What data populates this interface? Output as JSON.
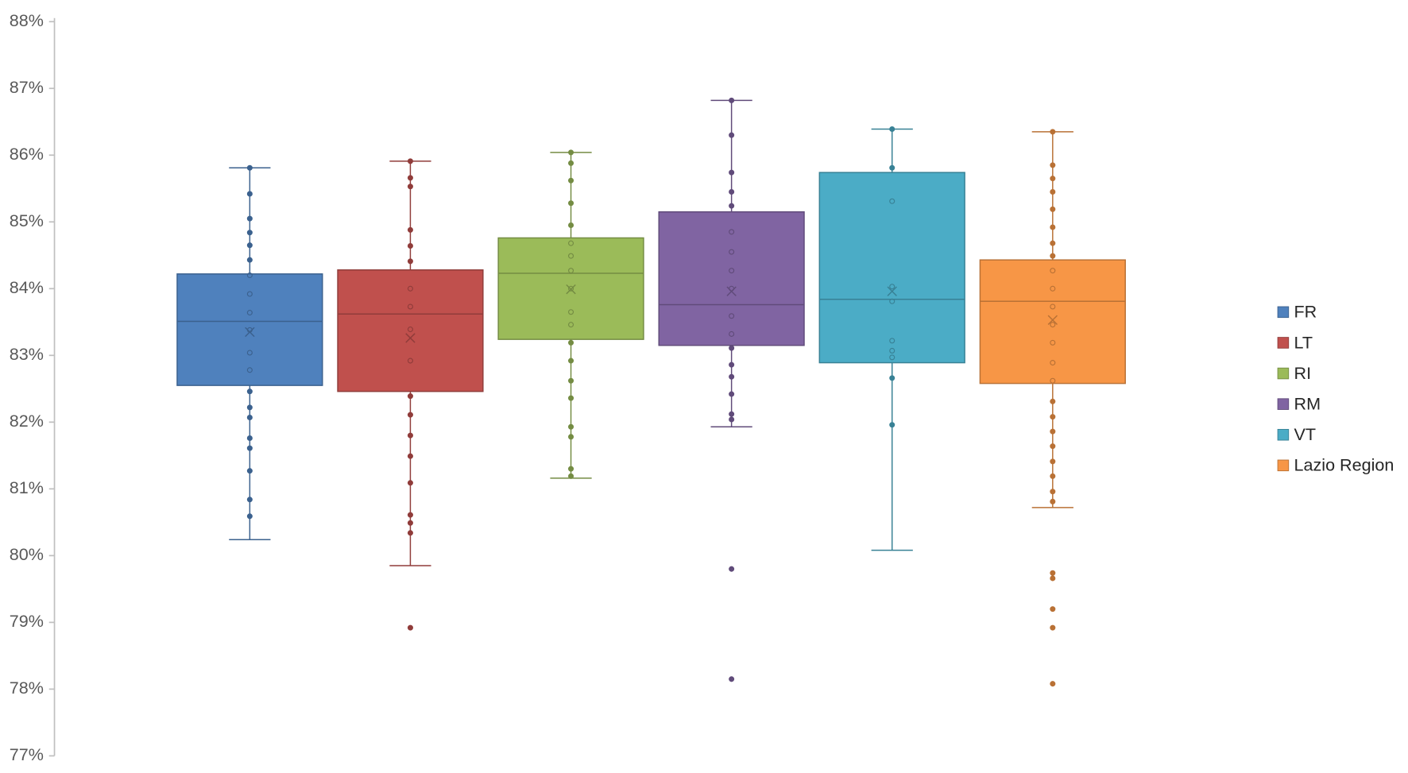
{
  "chart_data": {
    "type": "box",
    "ylim": [
      77,
      88
    ],
    "yticks": [
      {
        "value": 77,
        "label": "77%"
      },
      {
        "value": 78,
        "label": "78%"
      },
      {
        "value": 79,
        "label": "79%"
      },
      {
        "value": 80,
        "label": "80%"
      },
      {
        "value": 81,
        "label": "81%"
      },
      {
        "value": 82,
        "label": "82%"
      },
      {
        "value": 83,
        "label": "83%"
      },
      {
        "value": 84,
        "label": "84%"
      },
      {
        "value": 85,
        "label": "85%"
      },
      {
        "value": 86,
        "label": "86%"
      },
      {
        "value": 87,
        "label": "87%"
      },
      {
        "value": 88,
        "label": "88%"
      }
    ],
    "legend": "right",
    "series": [
      {
        "name": "FR",
        "color": "#4f81bd",
        "whisker_low": 80.24,
        "q1": 82.55,
        "median": 83.51,
        "q3": 84.22,
        "whisker_high": 85.81,
        "mean": 83.35,
        "points": [
          85.81,
          85.42,
          85.05,
          84.84,
          84.65,
          84.43,
          84.2,
          83.92,
          83.64,
          83.38,
          83.04,
          82.78,
          82.46,
          82.22,
          82.07,
          81.76,
          81.61,
          81.27,
          80.84,
          80.59
        ]
      },
      {
        "name": "LT",
        "color": "#c0504d",
        "whisker_low": 79.85,
        "q1": 82.46,
        "median": 83.62,
        "q3": 84.28,
        "whisker_high": 85.91,
        "mean": 83.26,
        "points": [
          85.91,
          85.66,
          85.53,
          84.88,
          84.64,
          84.41,
          84.0,
          83.73,
          83.39,
          82.92,
          82.39,
          82.11,
          81.8,
          81.49,
          81.09,
          80.61,
          80.49,
          80.34,
          78.92
        ]
      },
      {
        "name": "RI",
        "color": "#9bbb59",
        "whisker_low": 81.16,
        "q1": 83.24,
        "median": 84.23,
        "q3": 84.76,
        "whisker_high": 86.04,
        "mean": 83.99,
        "points": [
          86.04,
          85.88,
          85.62,
          85.28,
          84.95,
          84.68,
          84.49,
          84.27,
          84.0,
          83.65,
          83.46,
          83.19,
          82.92,
          82.62,
          82.36,
          81.93,
          81.78,
          81.3,
          81.19
        ]
      },
      {
        "name": "RM",
        "color": "#8064a2",
        "whisker_low": 81.93,
        "q1": 83.15,
        "median": 83.76,
        "q3": 85.15,
        "whisker_high": 86.82,
        "mean": 83.96,
        "points": [
          86.82,
          86.3,
          85.74,
          85.45,
          85.24,
          84.85,
          84.55,
          84.27,
          84.0,
          83.59,
          83.32,
          83.11,
          82.86,
          82.68,
          82.42,
          82.12,
          82.04,
          79.8,
          78.15
        ]
      },
      {
        "name": "VT",
        "color": "#4bacc6",
        "whisker_low": 80.08,
        "q1": 82.89,
        "median": 83.84,
        "q3": 85.74,
        "whisker_high": 86.39,
        "mean": 83.96,
        "points": [
          86.39,
          85.81,
          85.31,
          84.03,
          83.81,
          83.22,
          83.07,
          82.97,
          82.66,
          81.96
        ]
      },
      {
        "name": "Lazio Region",
        "color": "#f79646",
        "whisker_low": 80.72,
        "q1": 82.58,
        "median": 83.81,
        "q3": 84.43,
        "whisker_high": 86.35,
        "mean": 83.53,
        "points": [
          86.35,
          85.85,
          85.65,
          85.45,
          85.19,
          84.92,
          84.68,
          84.49,
          84.27,
          84.0,
          83.73,
          83.46,
          83.19,
          82.89,
          82.62,
          82.31,
          82.08,
          81.86,
          81.64,
          81.41,
          81.19,
          80.96,
          80.81,
          79.74,
          79.66,
          79.2,
          78.92,
          78.08
        ]
      }
    ]
  }
}
